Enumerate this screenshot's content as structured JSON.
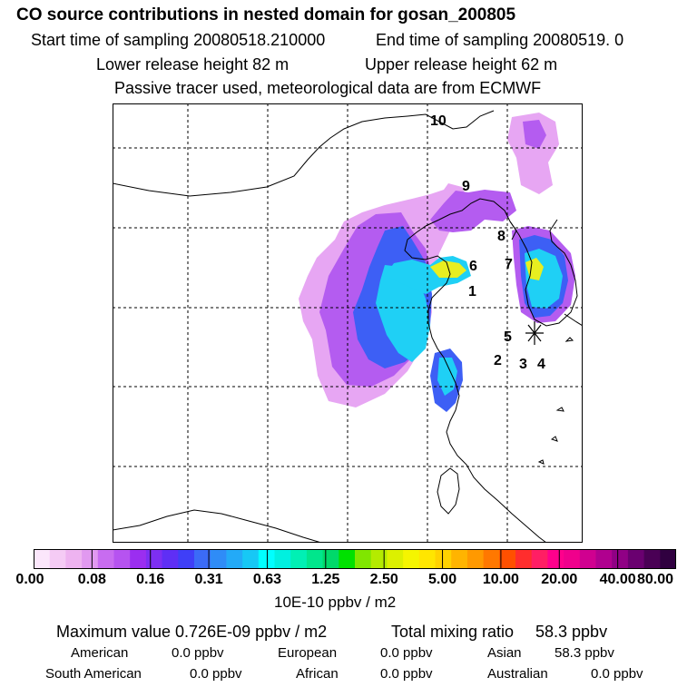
{
  "header": {
    "title": "CO  source contributions in nested domain for gosan_200805",
    "start_time": "Start time of sampling 20080518.210000",
    "end_time": "End time of sampling 20080519.     0",
    "lower_release": "Lower release height   82 m",
    "upper_release": "Upper release height   62 m",
    "tracer_note": "Passive tracer used, meteorological data are from ECMWF"
  },
  "map": {
    "labels": [
      "10",
      "9",
      "8",
      "7",
      "6",
      "1",
      "5",
      "2",
      "3",
      "4"
    ],
    "receptor_marker": "star-icon"
  },
  "colorbar": {
    "colors": [
      "#fbe6fb",
      "#f5cbf5",
      "#eeb3f0",
      "#e199f0",
      "#c86cf0",
      "#b653f0",
      "#9b2ef0",
      "#7d2ff2",
      "#5f2ff5",
      "#3f3ff7",
      "#3b6bf7",
      "#2f8cf7",
      "#23aaf7",
      "#17c8f5",
      "#00ffff",
      "#00f0e0",
      "#00f0b4",
      "#00e68c",
      "#00d96a",
      "#00e100",
      "#80e600",
      "#b4eb00",
      "#dcf000",
      "#f5f500",
      "#ffe600",
      "#ffd200",
      "#ffb400",
      "#ff9900",
      "#ff7800",
      "#ff5000",
      "#ff2d2d",
      "#ff1e64",
      "#ff008c",
      "#f0008c",
      "#d00090",
      "#b0008f",
      "#900085",
      "#6a0070",
      "#4a0055",
      "#300040"
    ],
    "ticks": [
      "0.00",
      "0.08",
      "0.16",
      "0.31",
      "0.63",
      "1.25",
      "2.50",
      "5.00",
      "10.00",
      "20.00",
      "40.00",
      "80.00"
    ],
    "units": "10E-10 ppbv / m2"
  },
  "summary": {
    "max_value": "Maximum value  0.726E-09 ppbv / m2",
    "total_label": "Total mixing ratio",
    "total_value": "58.3 ppbv",
    "regions": [
      {
        "name": "American",
        "value": "0.0 ppbv"
      },
      {
        "name": "European",
        "value": "0.0 ppbv"
      },
      {
        "name": "Asian",
        "value": "58.3 ppbv"
      },
      {
        "name": "South American",
        "value": "0.0 ppbv"
      },
      {
        "name": "African",
        "value": "0.0 ppbv"
      },
      {
        "name": "Australian",
        "value": "0.0 ppbv"
      }
    ]
  }
}
